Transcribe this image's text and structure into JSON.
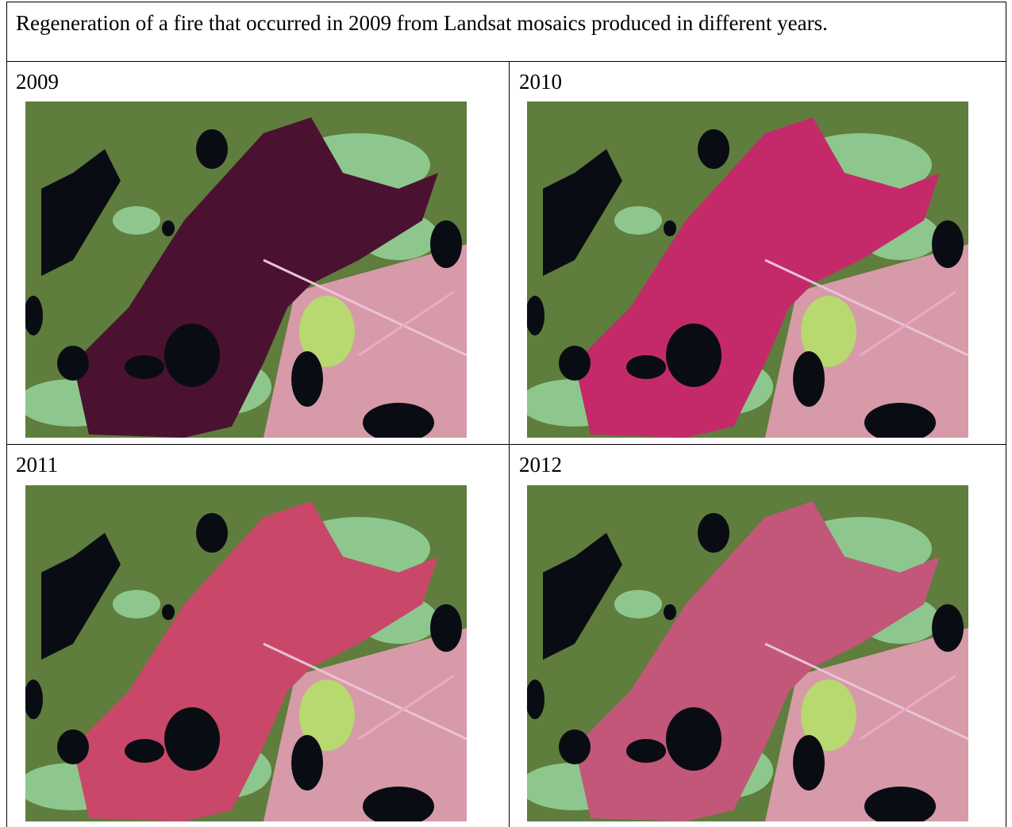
{
  "caption": "Regeneration of a fire that occurred in 2009 from Landsat mosaics produced in different years.",
  "panels": [
    {
      "year": "2009"
    },
    {
      "year": "2010"
    },
    {
      "year": "2011"
    },
    {
      "year": "2012"
    }
  ]
}
